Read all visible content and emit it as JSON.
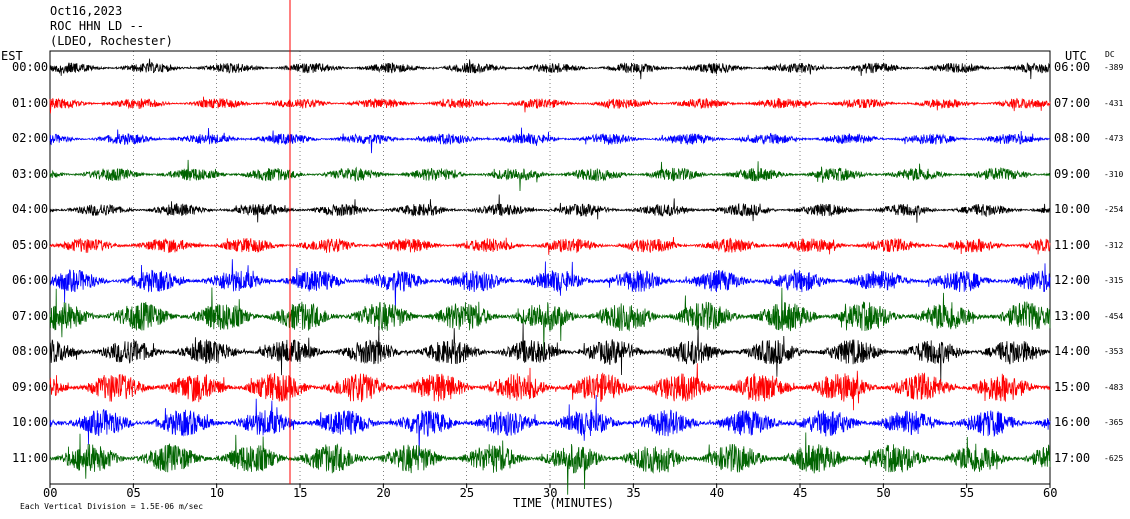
{
  "chart_data": {
    "type": "line",
    "title_lines": [
      "Oct16,2023",
      "ROC HHN LD --",
      "(LDEO, Rochester)"
    ],
    "left_axis_label": "EST",
    "right_axis_label": "UTC",
    "dc_label": "DC",
    "xlabel": "TIME (MINUTES)",
    "footer": "Each Vertical Division = 1.5E-06 m/sec",
    "xlim": [
      0,
      60
    ],
    "x_ticks": [
      "00",
      "05",
      "10",
      "15",
      "20",
      "25",
      "30",
      "35",
      "40",
      "45",
      "50",
      "55",
      "60"
    ],
    "trace_colors": [
      "#000000",
      "#ff0000",
      "#0000ff",
      "#006400"
    ],
    "rows": [
      {
        "est": "00:00",
        "utc": "06:00",
        "dc": "-389",
        "color": "#000000",
        "amplitude": 0.35
      },
      {
        "est": "01:00",
        "utc": "07:00",
        "dc": "-431",
        "color": "#ff0000",
        "amplitude": 0.35
      },
      {
        "est": "02:00",
        "utc": "08:00",
        "dc": "-473",
        "color": "#0000ff",
        "amplitude": 0.38
      },
      {
        "est": "03:00",
        "utc": "09:00",
        "dc": "-310",
        "color": "#006400",
        "amplitude": 0.45
      },
      {
        "est": "04:00",
        "utc": "10:00",
        "dc": "-254",
        "color": "#000000",
        "amplitude": 0.42
      },
      {
        "est": "05:00",
        "utc": "11:00",
        "dc": "-312",
        "color": "#ff0000",
        "amplitude": 0.5
      },
      {
        "est": "06:00",
        "utc": "12:00",
        "dc": "-315",
        "color": "#0000ff",
        "amplitude": 0.75
      },
      {
        "est": "07:00",
        "utc": "13:00",
        "dc": "-454",
        "color": "#006400",
        "amplitude": 1.0
      },
      {
        "est": "08:00",
        "utc": "14:00",
        "dc": "-353",
        "color": "#000000",
        "amplitude": 0.85
      },
      {
        "est": "09:00",
        "utc": "15:00",
        "dc": "-483",
        "color": "#ff0000",
        "amplitude": 1.0
      },
      {
        "est": "10:00",
        "utc": "16:00",
        "dc": "-365",
        "color": "#0000ff",
        "amplitude": 0.9
      },
      {
        "est": "11:00",
        "utc": "17:00",
        "dc": "-625",
        "color": "#006400",
        "amplitude": 1.0
      }
    ],
    "event_marker_minute": 14.4
  }
}
